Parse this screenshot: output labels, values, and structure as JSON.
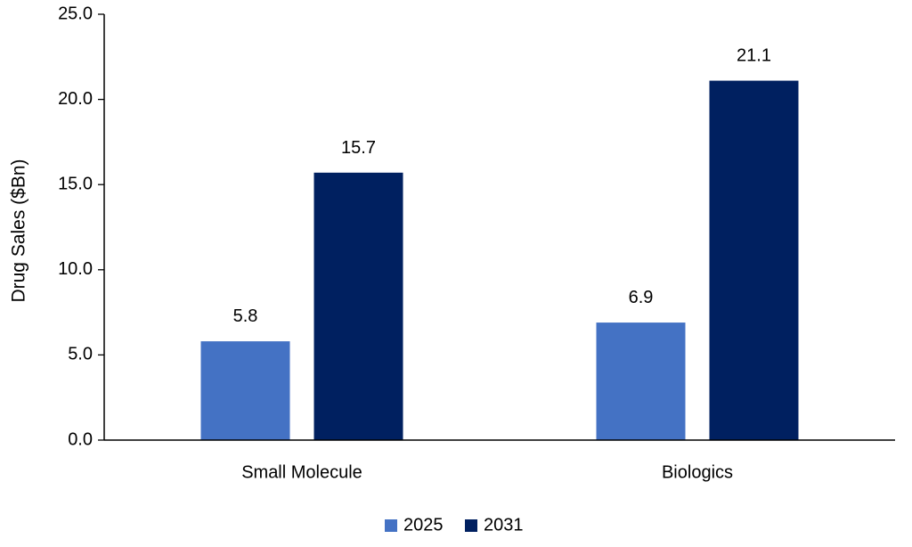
{
  "chart_data": {
    "type": "bar",
    "categories": [
      "Small Molecule",
      "Biologics"
    ],
    "series": [
      {
        "name": "2025",
        "values": [
          5.8,
          6.9
        ],
        "color": "#4472C4"
      },
      {
        "name": "2031",
        "values": [
          15.7,
          21.1
        ],
        "color": "#002060"
      }
    ],
    "data_labels": [
      [
        "5.8",
        "6.9"
      ],
      [
        "15.7",
        "21.1"
      ]
    ],
    "title": "",
    "xlabel": "",
    "ylabel": "Drug Sales ($Bn)",
    "ylim": [
      0,
      25
    ],
    "yticks": [
      0,
      5,
      10,
      15,
      20,
      25
    ],
    "ytick_labels": [
      "0.0",
      "5.0",
      "10.0",
      "15.0",
      "20.0",
      "25.0"
    ],
    "grid": false,
    "legend_position": "bottom"
  }
}
